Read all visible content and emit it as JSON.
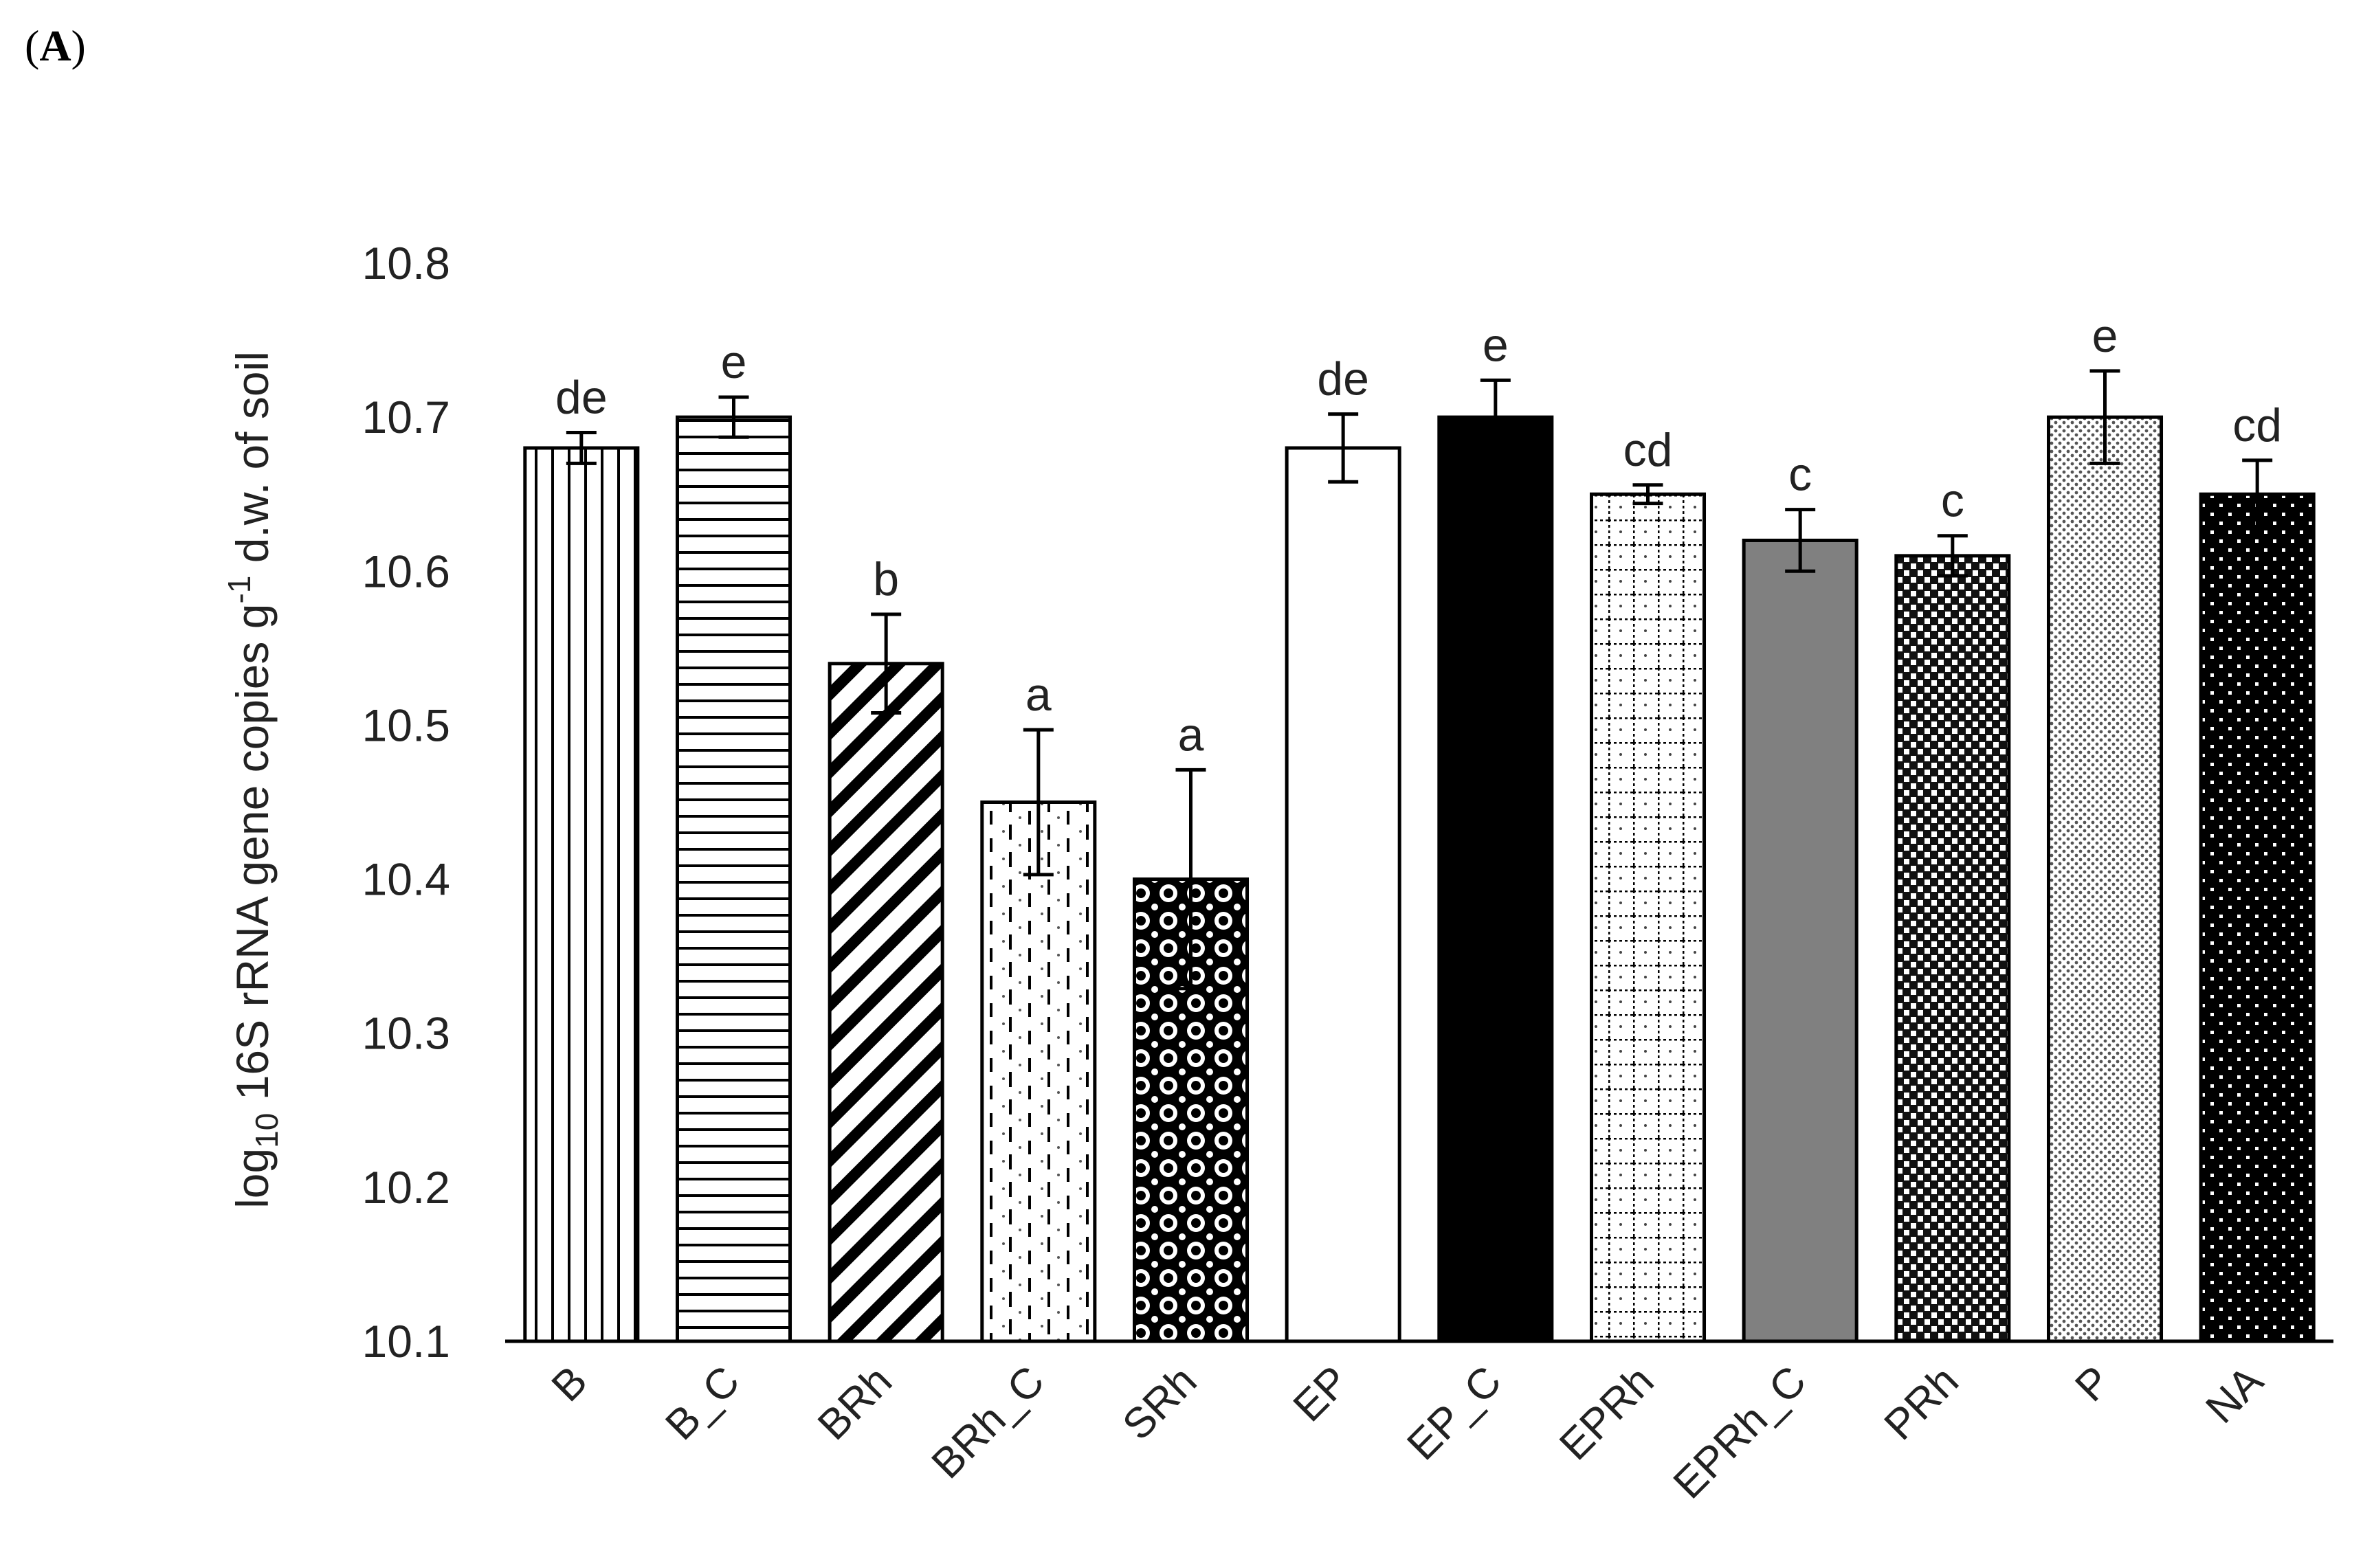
{
  "panel": {
    "open": "(",
    "letter": "A",
    "close": ")"
  },
  "chart_data": {
    "type": "bar",
    "title": "",
    "xlabel": "",
    "ylabel": {
      "prefix": "log",
      "subscript": "10",
      "middle": " 16S rRNA gene copies g",
      "superscript": "-1",
      "suffix": " d.w. of soil"
    },
    "ylim": [
      10.1,
      10.8
    ],
    "yticks": [
      "10.1",
      "10.2",
      "10.3",
      "10.4",
      "10.5",
      "10.6",
      "10.7",
      "10.8"
    ],
    "categories": [
      "B",
      "B_C",
      "BRh",
      "BRh_C",
      "SRh",
      "EP",
      "EP_C",
      "EPRh",
      "EPRh_C",
      "PRh",
      "P",
      "NA"
    ],
    "values": [
      10.68,
      10.7,
      10.54,
      10.45,
      10.4,
      10.68,
      10.7,
      10.65,
      10.62,
      10.61,
      10.7,
      10.65
    ],
    "errors": [
      0.01,
      0.013,
      0.032,
      0.047,
      0.071,
      0.022,
      0.024,
      0.006,
      0.02,
      0.013,
      0.03,
      0.022
    ],
    "significance": [
      "de",
      "e",
      "b",
      "a",
      "a",
      "de",
      "e",
      "cd",
      "c",
      "c",
      "e",
      "cd"
    ],
    "patterns": [
      "vertical-lines",
      "horizontal-lines",
      "diagonal-stripes",
      "dashed-grid",
      "circles-dark",
      "solid-white",
      "solid-black",
      "dotted-grid",
      "solid-gray",
      "checker-dense",
      "fine-dots",
      "dots-on-black"
    ],
    "colors": {
      "axis": "#000000",
      "text": "#222222",
      "gray_fill": "#808080",
      "black_fill": "#000000"
    }
  }
}
